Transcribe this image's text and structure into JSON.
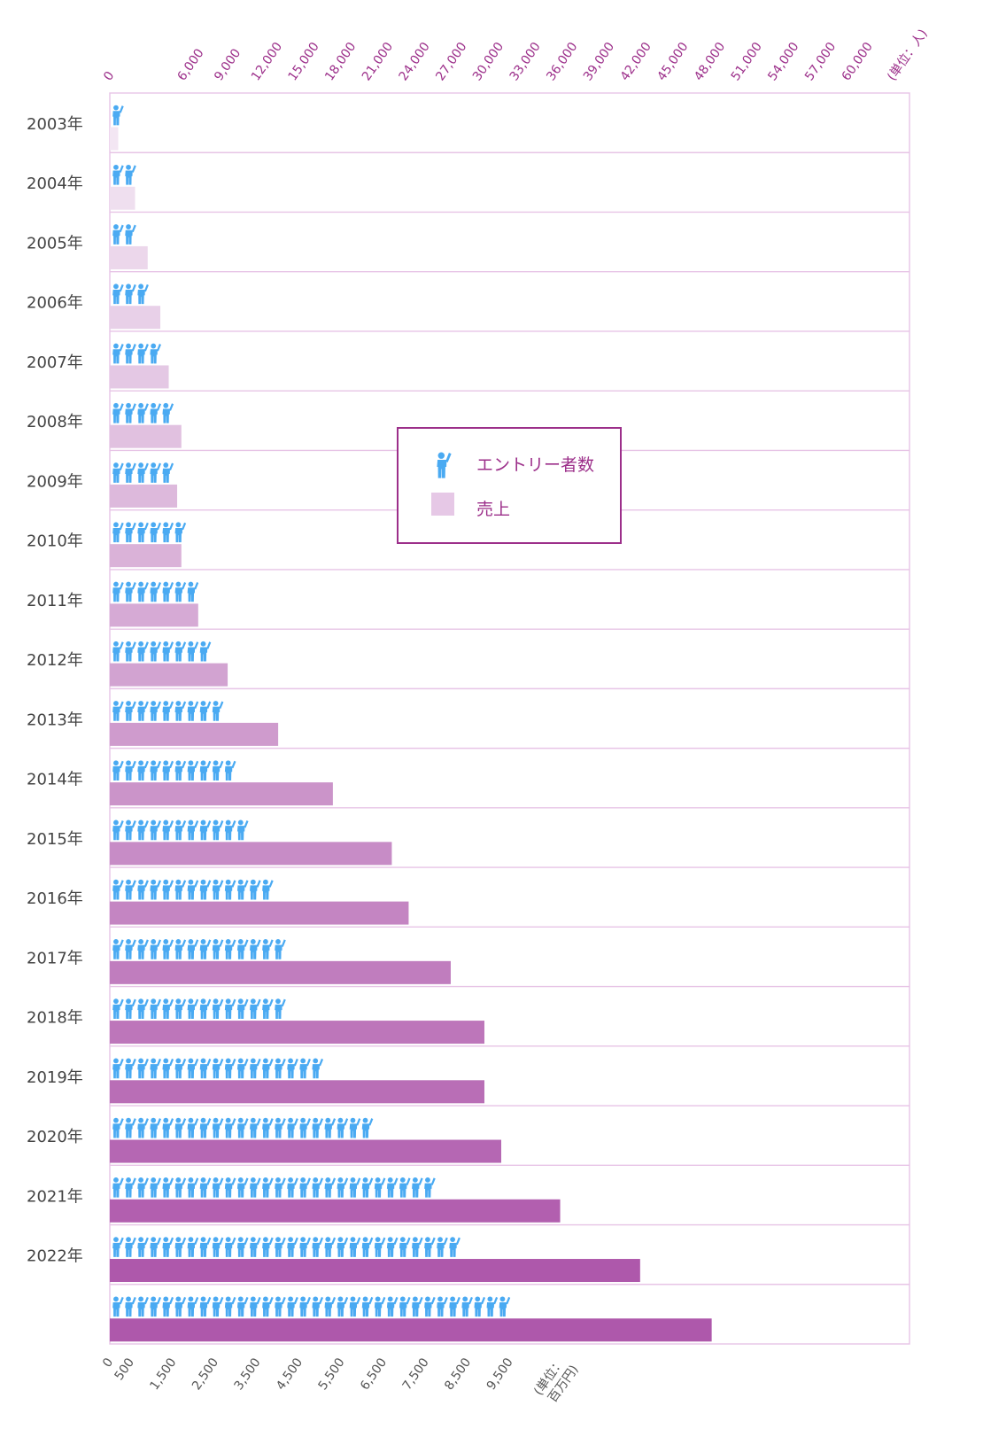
{
  "chart_data": {
    "type": "bar",
    "categories": [
      "2003年",
      "2004年",
      "2005年",
      "2006年",
      "2007年",
      "2008年",
      "2009年",
      "2010年",
      "2011年",
      "2012年",
      "2013年",
      "2014年",
      "2015年",
      "2016年",
      "2017年",
      "2018年",
      "2019年",
      "2020年",
      "2021年",
      "2022年",
      ""
    ],
    "series": [
      {
        "name": "エントリー者数",
        "unit": "(単位：人)",
        "values": [
          1000,
          3000,
          4000,
          6000,
          7000,
          9000,
          9000,
          12000,
          14000,
          15000,
          17000,
          20000,
          21000,
          26000,
          27000,
          27000,
          33000,
          41000,
          51000,
          56000,
          64000
        ]
      },
      {
        "name": "売上",
        "unit": "(単位：百万円)",
        "values": [
          200,
          600,
          900,
          1200,
          1400,
          1700,
          1600,
          1700,
          2100,
          2800,
          4000,
          5300,
          6700,
          7100,
          8100,
          8900,
          8900,
          9300,
          10700,
          12600,
          14300
        ]
      }
    ],
    "top_axis": {
      "ticks": [
        0,
        6000,
        9000,
        12000,
        15000,
        18000,
        21000,
        24000,
        27000,
        30000,
        33000,
        36000,
        39000,
        42000,
        45000,
        48000,
        51000,
        54000,
        57000,
        60000
      ],
      "tick_labels": [
        "0",
        "6,000",
        "9,000",
        "12,000",
        "15,000",
        "18,000",
        "21,000",
        "24,000",
        "27,000",
        "30,000",
        "33,000",
        "36,000",
        "39,000",
        "42,000",
        "45,000",
        "48,000",
        "51,000",
        "54,000",
        "57,000",
        "60,000"
      ],
      "unit_label": "(単位：人)",
      "range": [
        0,
        65000
      ]
    },
    "bottom_axis": {
      "ticks": [
        0,
        500,
        1500,
        2500,
        3500,
        4500,
        5500,
        6500,
        7500,
        8500,
        9500
      ],
      "tick_labels": [
        "0",
        "500",
        "1,500",
        "2,500",
        "3,500",
        "4,500",
        "5,500",
        "6,500",
        "7,500",
        "8,500",
        "9,500"
      ],
      "unit_label_line1": "(単位：",
      "unit_label_line2": "百万円)",
      "range": [
        0,
        19000
      ]
    },
    "legend": {
      "placement": "center",
      "items": [
        {
          "label": "エントリー者数",
          "kind": "person-icon"
        },
        {
          "label": "売上",
          "kind": "bar"
        }
      ]
    },
    "colors": {
      "icon": "#4aaaf2",
      "bar_light": "#f3e6f3",
      "bar_dark": "#ae58ab",
      "grid": "#e7c4e6",
      "top_axis_text": "#9c2f8a",
      "legend_border": "#9c2f8a"
    }
  }
}
